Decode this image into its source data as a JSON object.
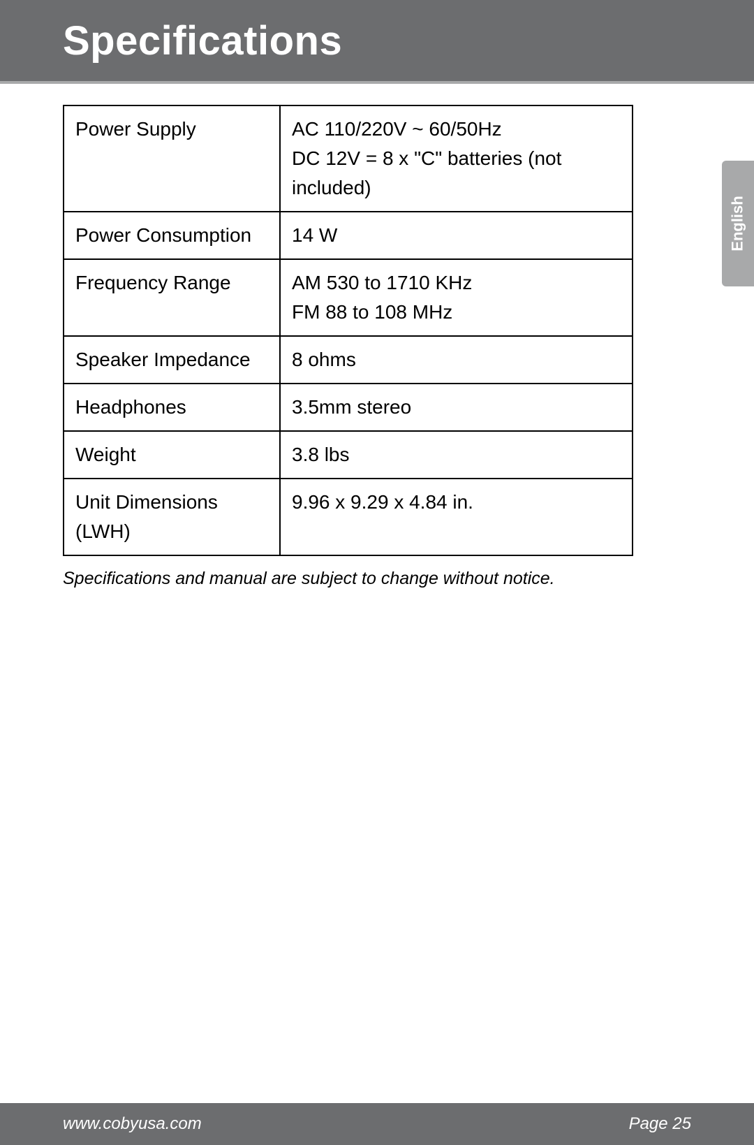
{
  "header": {
    "title": "Specifications"
  },
  "table": {
    "rows": [
      {
        "label": "Power Supply",
        "value": "AC 110/220V ~ 60/50Hz\nDC 12V = 8 x \"C\" batteries (not included)"
      },
      {
        "label": "Power Consumption",
        "value": "14 W"
      },
      {
        "label": "Frequency Range",
        "value": "AM 530 to 1710 KHz\nFM 88 to 108 MHz"
      },
      {
        "label": "Speaker Impedance",
        "value": "8 ohms"
      },
      {
        "label": "Headphones",
        "value": "3.5mm stereo"
      },
      {
        "label": "Weight",
        "value": "3.8 lbs"
      },
      {
        "label": "Unit Dimensions (LWH)",
        "value": "9.96 x 9.29 x 4.84 in."
      }
    ]
  },
  "note": "Specifications and manual are subject to change without notice.",
  "side_tab": "English",
  "footer": {
    "url": "www.cobyusa.com",
    "page": "Page 25"
  },
  "colors": {
    "header_bg": "#6c6d6f",
    "header_border": "#a8a9aa",
    "tab_bg": "#a8a9aa",
    "footer_bg": "#6c6d6f",
    "text_on_dark": "#ffffff",
    "text": "#000000",
    "table_border": "#000000"
  },
  "typography": {
    "title_fontsize": 58,
    "cell_fontsize": 28,
    "note_fontsize": 25,
    "footer_fontsize": 24,
    "tab_fontsize": 22
  }
}
